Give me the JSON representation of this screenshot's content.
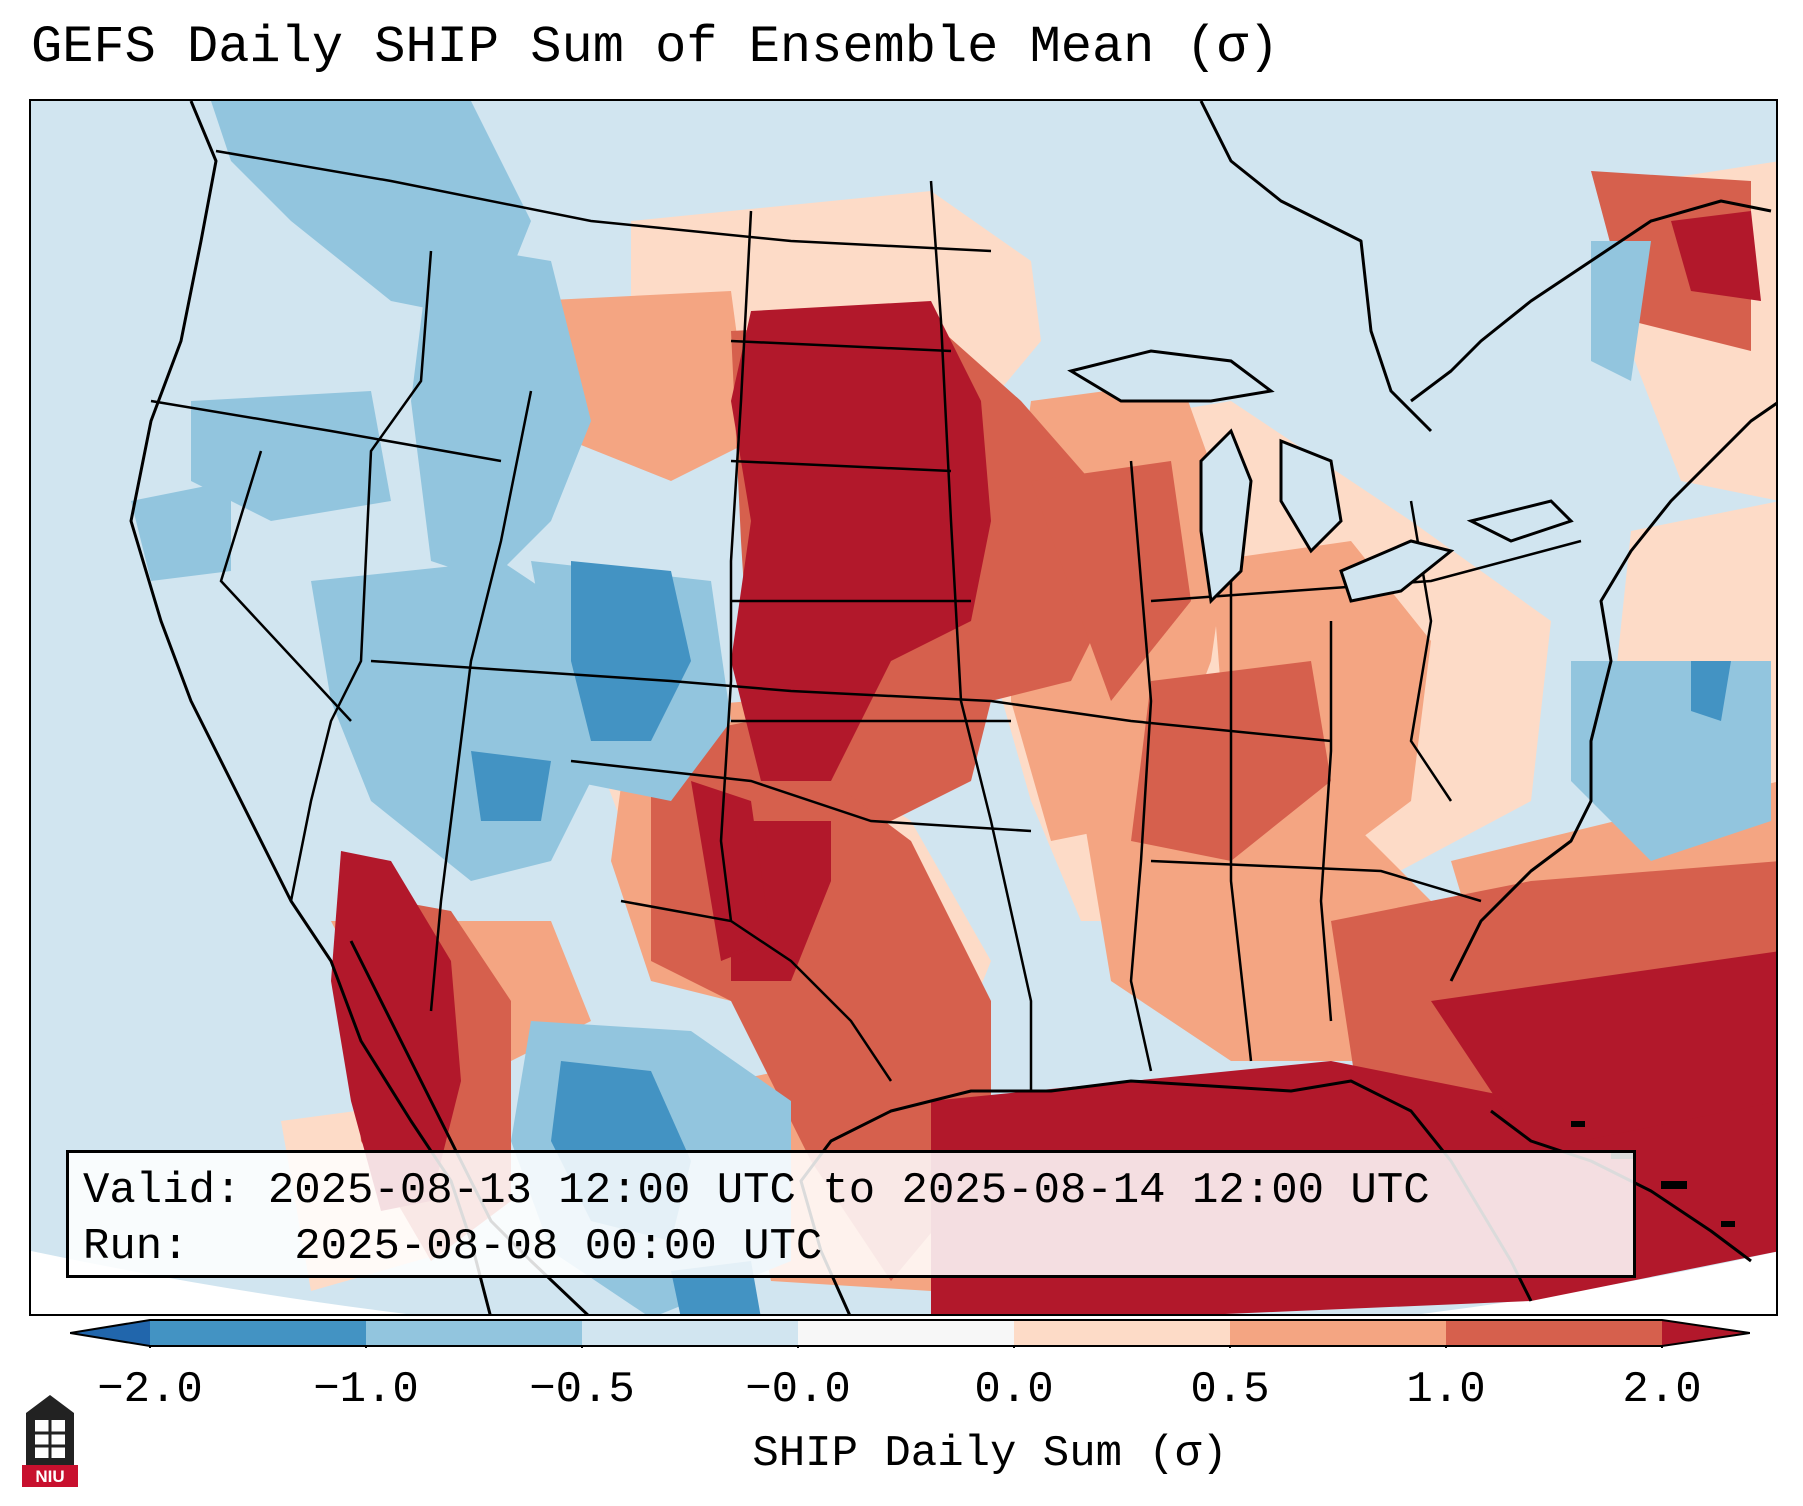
{
  "title": "GEFS Daily SHIP Sum of Ensemble Mean (σ)",
  "info": {
    "valid_label": "Valid:",
    "valid_value": "2025-08-13 12:00 UTC to 2025-08-14 12:00 UTC",
    "run_label": "Run:",
    "run_value": "2025-08-08 00:00 UTC"
  },
  "colorbar": {
    "label": "SHIP Daily Sum (σ)",
    "ticks": [
      "−2.0",
      "−1.0",
      "−0.5",
      "−0.0",
      "0.0",
      "0.5",
      "1.0",
      "2.0"
    ],
    "bins": [
      {
        "range": "< -2.0",
        "color": "#2166ac"
      },
      {
        "range": "-2.0 to -1.0",
        "color": "#4393c3"
      },
      {
        "range": "-1.0 to -0.5",
        "color": "#92c5de"
      },
      {
        "range": "-0.5 to -0.0",
        "color": "#d1e5f0"
      },
      {
        "range": "-0.0 to 0.0",
        "color": "#f7f7f7"
      },
      {
        "range": "0.0 to 0.5",
        "color": "#fddbc7"
      },
      {
        "range": "0.5 to 1.0",
        "color": "#f4a582"
      },
      {
        "range": "1.0 to 2.0",
        "color": "#d6604d"
      },
      {
        "range": "> 2.0",
        "color": "#b2182b"
      }
    ]
  },
  "logo": {
    "text": "NIU",
    "icon": "niu-tower-logo-icon",
    "color": "#c8102e"
  }
}
